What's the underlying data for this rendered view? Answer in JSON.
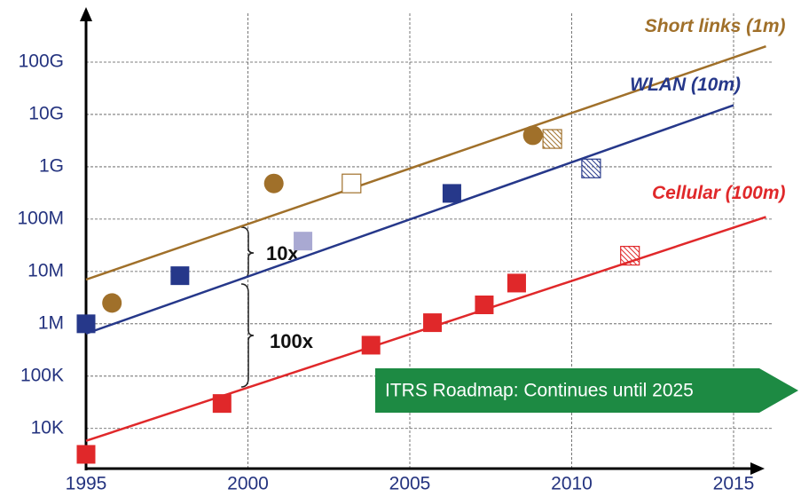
{
  "chart_data": {
    "type": "line",
    "xlim": [
      1995,
      2016
    ],
    "xticks": [
      1995,
      2000,
      2005,
      2010,
      2015
    ],
    "ylim": [
      2000,
      1000000000000
    ],
    "log_y": true,
    "yticks": [
      {
        "value": 10000,
        "label": "10K"
      },
      {
        "value": 100000,
        "label": "100K"
      },
      {
        "value": 1000000,
        "label": "1M"
      },
      {
        "value": 10000000,
        "label": "10M"
      },
      {
        "value": 100000000,
        "label": "100M"
      },
      {
        "value": 1000000000,
        "label": "1G"
      },
      {
        "value": 10000000000,
        "label": "10G"
      },
      {
        "value": 100000000000,
        "label": "100G"
      }
    ],
    "grid": true,
    "series": [
      {
        "name": "Short links (1m)",
        "color": "#a0702a",
        "x": [
          1995,
          2016
        ],
        "values": [
          7000000,
          200000000000
        ]
      },
      {
        "name": "WLAN (10m)",
        "color": "#26388a",
        "x": [
          1995,
          2015
        ],
        "values": [
          650000,
          15000000000
        ]
      },
      {
        "name": "Cellular (100m)",
        "color": "#e0282a",
        "x": [
          1995,
          2016
        ],
        "values": [
          5800,
          110000000
        ]
      }
    ],
    "points": [
      {
        "color": "#a0702a",
        "marker": "circle",
        "fill": "solid",
        "x": [
          1995.8,
          2000.8,
          2008.8
        ],
        "values": [
          2500000,
          480000000,
          4000000000
        ]
      },
      {
        "color": "#a0702a",
        "marker": "square",
        "fill": "hollow",
        "x": [
          2003.2
        ],
        "values": [
          480000000
        ]
      },
      {
        "color": "#a0702a",
        "marker": "square",
        "fill": "hatched",
        "x": [
          2009.4
        ],
        "values": [
          3400000000
        ]
      },
      {
        "color": "#26388a",
        "marker": "square",
        "fill": "solid",
        "x": [
          1995,
          1997.9,
          2006.3
        ],
        "values": [
          1000000,
          8300000,
          310000000
        ]
      },
      {
        "color": "#a9a9d2",
        "marker": "square",
        "fill": "solid",
        "x": [
          2001.7
        ],
        "values": [
          38000000
        ]
      },
      {
        "color": "#26388a",
        "marker": "square",
        "fill": "hatched",
        "x": [
          2010.6
        ],
        "values": [
          930000000
        ]
      },
      {
        "color": "#e0282a",
        "marker": "square",
        "fill": "solid",
        "x": [
          1995,
          1999.2,
          2003.8,
          2005.7,
          2007.3,
          2008.3
        ],
        "values": [
          3200,
          30000,
          390000,
          1050000,
          2300000,
          6000000
        ]
      },
      {
        "color": "#e0282a",
        "marker": "square",
        "fill": "hatched",
        "x": [
          2011.8
        ],
        "values": [
          20000000
        ]
      }
    ],
    "annotations": [
      "10x",
      "100x",
      "ITRS Roadmap: Continues until 2025"
    ]
  }
}
